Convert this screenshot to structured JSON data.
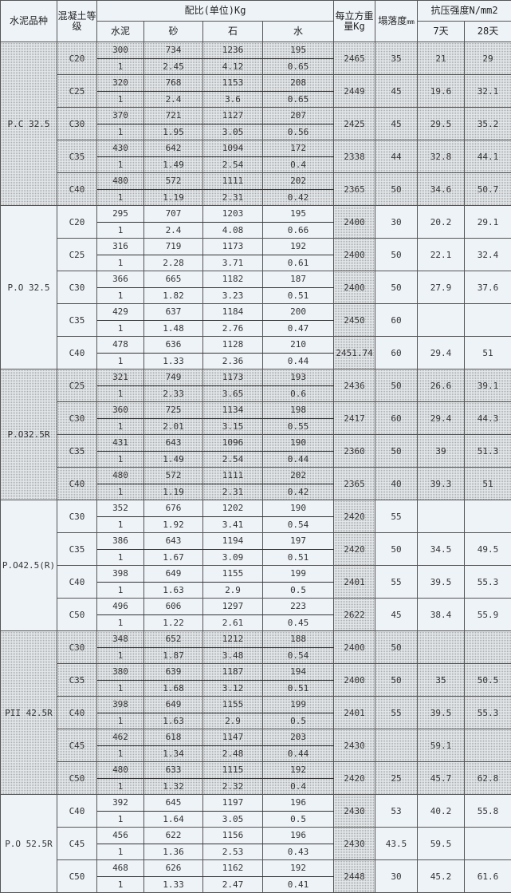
{
  "header": {
    "cement_type": "水泥品种",
    "concrete_grade": "混凝土等级",
    "mix_ratio": "配比(单位)Kg",
    "cement": "水泥",
    "sand": "砂",
    "stone": "石",
    "water": "水",
    "unit_weight": "每立方重量Kg",
    "slump": "塌落度",
    "slump_unit": "mm",
    "strength": "抗压强度N/mm2",
    "day7": "7天",
    "day28": "28天"
  },
  "groups": [
    {
      "type": "P.C 32.5",
      "grades": [
        {
          "grade": "C20",
          "kg": [
            "300",
            "734",
            "1236",
            "195"
          ],
          "ratio": [
            "1",
            "2.45",
            "4.12",
            "0.65"
          ],
          "weight": "2465",
          "slump": "35",
          "s7": "21",
          "s28": "29"
        },
        {
          "grade": "C25",
          "kg": [
            "320",
            "768",
            "1153",
            "208"
          ],
          "ratio": [
            "1",
            "2.4",
            "3.6",
            "0.65"
          ],
          "weight": "2449",
          "slump": "45",
          "s7": "19.6",
          "s28": "32.1"
        },
        {
          "grade": "C30",
          "kg": [
            "370",
            "721",
            "1127",
            "207"
          ],
          "ratio": [
            "1",
            "1.95",
            "3.05",
            "0.56"
          ],
          "weight": "2425",
          "slump": "45",
          "s7": "29.5",
          "s28": "35.2"
        },
        {
          "grade": "C35",
          "kg": [
            "430",
            "642",
            "1094",
            "172"
          ],
          "ratio": [
            "1",
            "1.49",
            "2.54",
            "0.4"
          ],
          "weight": "2338",
          "slump": "44",
          "s7": "32.8",
          "s28": "44.1"
        },
        {
          "grade": "C40",
          "kg": [
            "480",
            "572",
            "1111",
            "202"
          ],
          "ratio": [
            "1",
            "1.19",
            "2.31",
            "0.42"
          ],
          "weight": "2365",
          "slump": "50",
          "s7": "34.6",
          "s28": "50.7"
        }
      ]
    },
    {
      "type": "P.O 32.5",
      "grades": [
        {
          "grade": "C20",
          "kg": [
            "295",
            "707",
            "1203",
            "195"
          ],
          "ratio": [
            "1",
            "2.4",
            "4.08",
            "0.66"
          ],
          "weight": "2400",
          "slump": "30",
          "s7": "20.2",
          "s28": "29.1"
        },
        {
          "grade": "C25",
          "kg": [
            "316",
            "719",
            "1173",
            "192"
          ],
          "ratio": [
            "1",
            "2.28",
            "3.71",
            "0.61"
          ],
          "weight": "2400",
          "slump": "50",
          "s7": "22.1",
          "s28": "32.4"
        },
        {
          "grade": "C30",
          "kg": [
            "366",
            "665",
            "1182",
            "187"
          ],
          "ratio": [
            "1",
            "1.82",
            "3.23",
            "0.51"
          ],
          "weight": "2400",
          "slump": "50",
          "s7": "27.9",
          "s28": "37.6"
        },
        {
          "grade": "C35",
          "kg": [
            "429",
            "637",
            "1184",
            "200"
          ],
          "ratio": [
            "1",
            "1.48",
            "2.76",
            "0.47"
          ],
          "weight": "2450",
          "slump": "60",
          "s7": "",
          "s28": ""
        },
        {
          "grade": "C40",
          "kg": [
            "478",
            "636",
            "1128",
            "210"
          ],
          "ratio": [
            "1",
            "1.33",
            "2.36",
            "0.44"
          ],
          "weight": "2451.74",
          "slump": "60",
          "s7": "29.4",
          "s28": "51"
        }
      ]
    },
    {
      "type": "P.O32.5R",
      "grades": [
        {
          "grade": "C25",
          "kg": [
            "321",
            "749",
            "1173",
            "193"
          ],
          "ratio": [
            "1",
            "2.33",
            "3.65",
            "0.6"
          ],
          "weight": "2436",
          "slump": "50",
          "s7": "26.6",
          "s28": "39.1"
        },
        {
          "grade": "C30",
          "kg": [
            "360",
            "725",
            "1134",
            "198"
          ],
          "ratio": [
            "1",
            "2.01",
            "3.15",
            "0.55"
          ],
          "weight": "2417",
          "slump": "60",
          "s7": "29.4",
          "s28": "44.3"
        },
        {
          "grade": "C35",
          "kg": [
            "431",
            "643",
            "1096",
            "190"
          ],
          "ratio": [
            "1",
            "1.49",
            "2.54",
            "0.44"
          ],
          "weight": "2360",
          "slump": "50",
          "s7": "39",
          "s28": "51.3"
        },
        {
          "grade": "C40",
          "kg": [
            "480",
            "572",
            "1111",
            "202"
          ],
          "ratio": [
            "1",
            "1.19",
            "2.31",
            "0.42"
          ],
          "weight": "2365",
          "slump": "40",
          "s7": "39.3",
          "s28": "51"
        }
      ]
    },
    {
      "type": "P.O42.5(R)",
      "grades": [
        {
          "grade": "C30",
          "kg": [
            "352",
            "676",
            "1202",
            "190"
          ],
          "ratio": [
            "1",
            "1.92",
            "3.41",
            "0.54"
          ],
          "weight": "2420",
          "slump": "55",
          "s7": "",
          "s28": ""
        },
        {
          "grade": "C35",
          "kg": [
            "386",
            "643",
            "1194",
            "197"
          ],
          "ratio": [
            "1",
            "1.67",
            "3.09",
            "0.51"
          ],
          "weight": "2420",
          "slump": "50",
          "s7": "34.5",
          "s28": "49.5"
        },
        {
          "grade": "C40",
          "kg": [
            "398",
            "649",
            "1155",
            "199"
          ],
          "ratio": [
            "1",
            "1.63",
            "2.9",
            "0.5"
          ],
          "weight": "2401",
          "slump": "55",
          "s7": "39.5",
          "s28": "55.3"
        },
        {
          "grade": "C50",
          "kg": [
            "496",
            "606",
            "1297",
            "223"
          ],
          "ratio": [
            "1",
            "1.22",
            "2.61",
            "0.45"
          ],
          "weight": "2622",
          "slump": "45",
          "s7": "38.4",
          "s28": "55.9"
        }
      ]
    },
    {
      "type": "PII 42.5R",
      "grades": [
        {
          "grade": "C30",
          "kg": [
            "348",
            "652",
            "1212",
            "188"
          ],
          "ratio": [
            "1",
            "1.87",
            "3.48",
            "0.54"
          ],
          "weight": "2400",
          "slump": "50",
          "s7": "",
          "s28": ""
        },
        {
          "grade": "C35",
          "kg": [
            "380",
            "639",
            "1187",
            "194"
          ],
          "ratio": [
            "1",
            "1.68",
            "3.12",
            "0.51"
          ],
          "weight": "2400",
          "slump": "50",
          "s7": "35",
          "s28": "50.5"
        },
        {
          "grade": "C40",
          "kg": [
            "398",
            "649",
            "1155",
            "199"
          ],
          "ratio": [
            "1",
            "1.63",
            "2.9",
            "0.5"
          ],
          "weight": "2401",
          "slump": "55",
          "s7": "39.5",
          "s28": "55.3"
        },
        {
          "grade": "C45",
          "kg": [
            "462",
            "618",
            "1147",
            "203"
          ],
          "ratio": [
            "1",
            "1.34",
            "2.48",
            "0.44"
          ],
          "weight": "2430",
          "slump": "",
          "s7": "59.1",
          "s28": ""
        },
        {
          "grade": "C50",
          "kg": [
            "480",
            "633",
            "1115",
            "192"
          ],
          "ratio": [
            "1",
            "1.32",
            "2.32",
            "0.4"
          ],
          "weight": "2420",
          "slump": "25",
          "s7": "45.7",
          "s28": "62.8"
        }
      ]
    },
    {
      "type": "P.O 52.5R",
      "grades": [
        {
          "grade": "C40",
          "kg": [
            "392",
            "645",
            "1197",
            "196"
          ],
          "ratio": [
            "1",
            "1.64",
            "3.05",
            "0.5"
          ],
          "weight": "2430",
          "slump": "53",
          "s7": "40.2",
          "s28": "55.8"
        },
        {
          "grade": "C45",
          "kg": [
            "456",
            "622",
            "1156",
            "196"
          ],
          "ratio": [
            "1",
            "1.36",
            "2.53",
            "0.43"
          ],
          "weight": "2430",
          "slump": "43.5",
          "s7": "59.5",
          "s28": ""
        },
        {
          "grade": "C50",
          "kg": [
            "468",
            "626",
            "1162",
            "192"
          ],
          "ratio": [
            "1",
            "1.33",
            "2.47",
            "0.41"
          ],
          "weight": "2448",
          "slump": "30",
          "s7": "45.2",
          "s28": "61.6"
        }
      ]
    }
  ]
}
